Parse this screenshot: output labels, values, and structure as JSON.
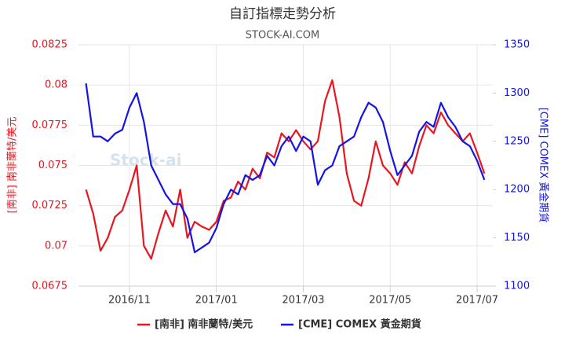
{
  "chart_data": {
    "type": "line",
    "title": "自訂指標走勢分析",
    "subtitle": "STOCK-AI.COM",
    "watermark": "Stock-ai",
    "y_label": "[南非] 南非蘭特/美元",
    "y2_label": "[CME] COMEX 黃金期貨",
    "categories": [
      null,
      null,
      null,
      null,
      null,
      null,
      "2016/11",
      null,
      null,
      null,
      null,
      null,
      null,
      null,
      null,
      null,
      null,
      null,
      "2017/01",
      null,
      null,
      null,
      null,
      null,
      null,
      null,
      null,
      null,
      null,
      null,
      "2017/03",
      null,
      null,
      null,
      null,
      null,
      null,
      null,
      null,
      null,
      null,
      null,
      "2017/05",
      null,
      null,
      null,
      null,
      null,
      null,
      null,
      null,
      null,
      null,
      null,
      "2017/07",
      null
    ],
    "series": [
      {
        "name": "[南非] 南非蘭特/美元",
        "color": "#e8161e",
        "axis": "y",
        "values": [
          0.0735,
          0.072,
          0.0697,
          0.0705,
          0.0718,
          0.0722,
          0.0735,
          0.075,
          0.07,
          0.0692,
          0.0708,
          0.0722,
          0.0712,
          0.0735,
          0.0705,
          0.0715,
          0.0712,
          0.071,
          0.0715,
          0.0728,
          0.073,
          0.074,
          0.0735,
          0.0748,
          0.0742,
          0.0758,
          0.0755,
          0.077,
          0.0765,
          0.0772,
          0.0765,
          0.076,
          0.0765,
          0.079,
          0.0803,
          0.078,
          0.0745,
          0.0728,
          0.0725,
          0.0742,
          0.0765,
          0.075,
          0.0745,
          0.0738,
          0.0752,
          0.0745,
          0.0762,
          0.0775,
          0.077,
          0.0783,
          0.0775,
          0.077,
          0.0765,
          0.077,
          0.0758,
          0.0745
        ]
      },
      {
        "name": "[CME] COMEX 黃金期貨",
        "color": "#1414e6",
        "axis": "y2",
        "values": [
          1310,
          1255,
          1255,
          1250,
          1258,
          1262,
          1285,
          1300,
          1270,
          1225,
          1210,
          1195,
          1185,
          1185,
          1170,
          1135,
          1140,
          1145,
          1160,
          1185,
          1200,
          1195,
          1215,
          1210,
          1215,
          1235,
          1225,
          1245,
          1255,
          1240,
          1255,
          1250,
          1205,
          1220,
          1225,
          1245,
          1250,
          1255,
          1275,
          1290,
          1285,
          1270,
          1240,
          1215,
          1225,
          1235,
          1260,
          1270,
          1265,
          1290,
          1275,
          1265,
          1250,
          1245,
          1230,
          1210
        ]
      }
    ],
    "ylim": [
      0.0675,
      0.0825
    ],
    "yticks": [
      0.0675,
      0.07,
      0.0725,
      0.075,
      0.0775,
      0.08,
      0.0825
    ],
    "y2lim": [
      1100,
      1350
    ],
    "y2ticks": [
      1100,
      1150,
      1200,
      1250,
      1300,
      1350
    ],
    "grid": true,
    "legend": "bottom"
  }
}
